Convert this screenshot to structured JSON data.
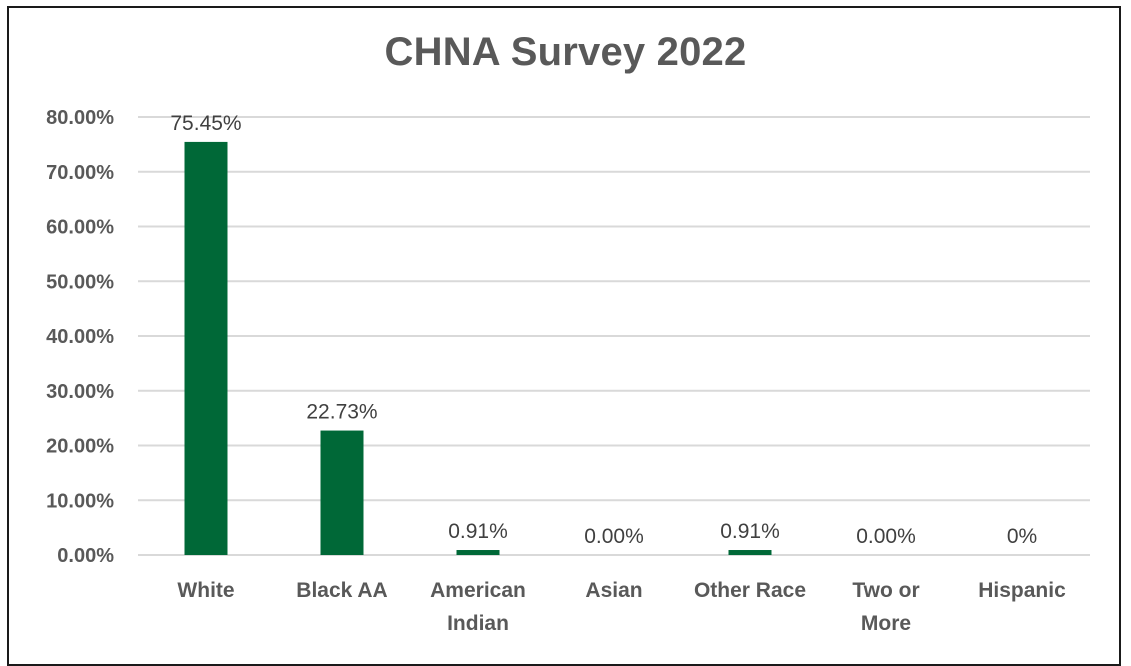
{
  "chart_data": {
    "type": "bar",
    "title": "CHNA Survey 2022",
    "xlabel": "",
    "ylabel": "",
    "categories": [
      [
        "White"
      ],
      [
        "Black AA"
      ],
      [
        "American",
        "Indian"
      ],
      [
        "Asian"
      ],
      [
        "Other Race"
      ],
      [
        "Two or",
        "More"
      ],
      [
        "Hispanic"
      ]
    ],
    "values": [
      75.45,
      22.73,
      0.91,
      0.0,
      0.91,
      0.0,
      0.0
    ],
    "data_labels": [
      "75.45%",
      "22.73%",
      "0.91%",
      "0.00%",
      "0.91%",
      "0.00%",
      "0%"
    ],
    "yticks": [
      0,
      10,
      20,
      30,
      40,
      50,
      60,
      70,
      80
    ],
    "ytick_labels": [
      "0.00%",
      "10.00%",
      "20.00%",
      "30.00%",
      "40.00%",
      "50.00%",
      "60.00%",
      "70.00%",
      "80.00%"
    ],
    "ylim": [
      0,
      80
    ],
    "grid": true,
    "legend": "none",
    "bar_color": "#006837",
    "grid_color": "#d9d9d9"
  }
}
